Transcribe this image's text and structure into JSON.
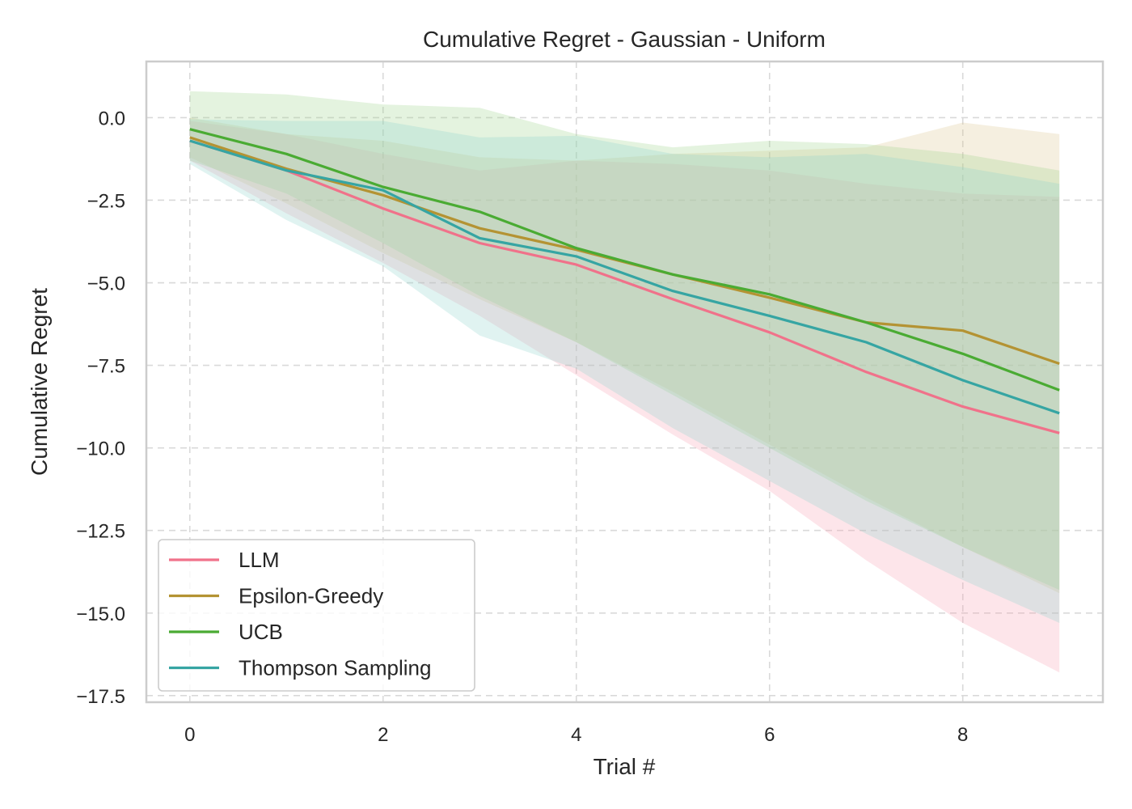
{
  "chart_data": {
    "type": "line",
    "title": "Cumulative Regret - Gaussian - Uniform",
    "xlabel": "Trial #",
    "ylabel": "Cumulative Regret",
    "xlim": [
      -0.45,
      9.45
    ],
    "ylim": [
      -17.7,
      1.7
    ],
    "x_ticks": [
      0,
      2,
      4,
      6,
      8
    ],
    "y_ticks": [
      0.0,
      -2.5,
      -5.0,
      -7.5,
      -10.0,
      -12.5,
      -15.0,
      -17.5
    ],
    "y_tick_labels": [
      "0.0",
      "−2.5",
      "−5.0",
      "−7.5",
      "−10.0",
      "−12.5",
      "−15.0",
      "−17.5"
    ],
    "x_tick_labels": [
      "0",
      "2",
      "4",
      "6",
      "8"
    ],
    "grid": true,
    "legend_position": "lower-left",
    "x": [
      0,
      1,
      2,
      3,
      4,
      5,
      6,
      7,
      8,
      9
    ],
    "series": [
      {
        "name": "LLM",
        "color": "#f0728a",
        "band_color": "#f7a3b5",
        "values": [
          -0.7,
          -1.6,
          -2.75,
          -3.8,
          -4.45,
          -5.5,
          -6.5,
          -7.7,
          -8.75,
          -9.55
        ],
        "lower": [
          -1.3,
          -2.9,
          -4.4,
          -6.0,
          -7.8,
          -9.6,
          -11.3,
          -13.4,
          -15.3,
          -16.8
        ],
        "upper": [
          -0.1,
          -0.5,
          -1.1,
          -1.6,
          -1.3,
          -1.4,
          -1.6,
          -2.0,
          -2.3,
          -2.4
        ]
      },
      {
        "name": "Epsilon-Greedy",
        "color": "#b49333",
        "band_color": "#dcc48e",
        "values": [
          -0.6,
          -1.55,
          -2.35,
          -3.35,
          -4.0,
          -4.75,
          -5.45,
          -6.2,
          -6.45,
          -7.45
        ],
        "lower": [
          -1.2,
          -2.6,
          -4.1,
          -5.5,
          -6.8,
          -8.3,
          -9.9,
          -11.5,
          -13.0,
          -14.4
        ],
        "upper": [
          0.0,
          -0.5,
          -0.7,
          -1.2,
          -1.3,
          -1.1,
          -1.0,
          -0.9,
          -0.15,
          -0.5
        ]
      },
      {
        "name": "UCB",
        "color": "#4aab33",
        "band_color": "#9fd38c",
        "values": [
          -0.35,
          -1.1,
          -2.1,
          -2.85,
          -3.95,
          -4.75,
          -5.35,
          -6.2,
          -7.15,
          -8.25
        ],
        "lower": [
          -1.3,
          -2.3,
          -3.8,
          -5.4,
          -6.8,
          -8.4,
          -10.0,
          -11.6,
          -13.0,
          -14.3
        ],
        "upper": [
          0.8,
          0.7,
          0.4,
          0.3,
          -0.5,
          -0.9,
          -0.7,
          -0.8,
          -1.1,
          -1.6
        ]
      },
      {
        "name": "Thompson Sampling",
        "color": "#36a5a3",
        "band_color": "#8ed3cc",
        "values": [
          -0.7,
          -1.6,
          -2.2,
          -3.65,
          -4.2,
          -5.25,
          -6.0,
          -6.8,
          -7.95,
          -8.95
        ],
        "lower": [
          -1.4,
          -3.1,
          -4.5,
          -6.6,
          -7.6,
          -9.4,
          -11.0,
          -12.6,
          -14.0,
          -15.3
        ],
        "upper": [
          -0.05,
          -0.1,
          -0.1,
          -0.6,
          -0.55,
          -1.1,
          -1.2,
          -1.1,
          -1.5,
          -2.0
        ]
      }
    ]
  }
}
